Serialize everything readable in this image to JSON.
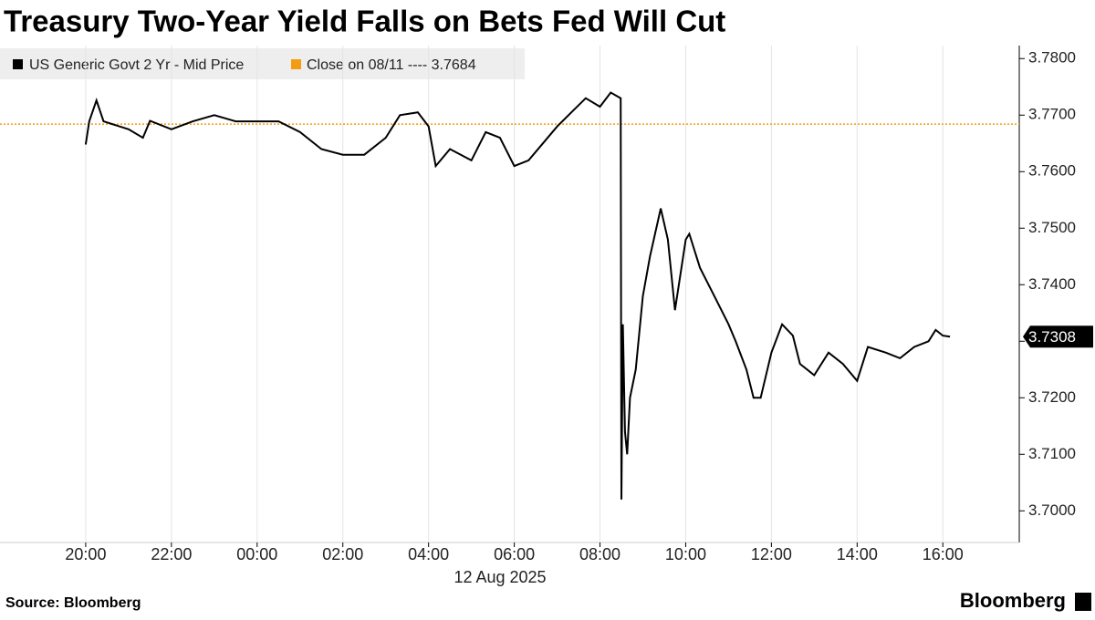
{
  "chart_data": {
    "type": "line",
    "title": "Treasury Two-Year Yield Falls on Bets Fed Will Cut",
    "source": "Source: Bloomberg",
    "brand": "Bloomberg",
    "x_sublabel": "12 Aug 2025",
    "xlim": [
      "18:00",
      "17:47"
    ],
    "xticks": [
      "20:00",
      "22:00",
      "00:00",
      "02:00",
      "04:00",
      "06:00",
      "08:00",
      "10:00",
      "12:00",
      "14:00",
      "16:00"
    ],
    "ylim": [
      3.6944,
      3.7823
    ],
    "yticks": [
      {
        "value": 3.7,
        "label": "3.7000"
      },
      {
        "value": 3.71,
        "label": "3.7100"
      },
      {
        "value": 3.72,
        "label": "3.7200"
      },
      {
        "value": 3.73,
        "label": "3.7300"
      },
      {
        "value": 3.74,
        "label": "3.7400"
      },
      {
        "value": 3.75,
        "label": "3.7500"
      },
      {
        "value": 3.76,
        "label": "3.7600"
      },
      {
        "value": 3.77,
        "label": "3.7700"
      },
      {
        "value": 3.78,
        "label": "3.7800"
      }
    ],
    "x": [
      "20:00",
      "20:05",
      "20:15",
      "20:25",
      "21:00",
      "21:20",
      "21:30",
      "22:00",
      "22:30",
      "23:00",
      "23:30",
      "00:30",
      "01:00",
      "01:30",
      "02:00",
      "02:30",
      "03:00",
      "03:20",
      "03:45",
      "04:00",
      "04:10",
      "04:30",
      "05:00",
      "05:20",
      "05:40",
      "06:00",
      "06:20",
      "06:40",
      "07:00",
      "07:20",
      "07:40",
      "08:00",
      "08:15",
      "08:29",
      "08:30",
      "08:32",
      "08:35",
      "08:38",
      "08:42",
      "08:50",
      "09:00",
      "09:10",
      "09:25",
      "09:35",
      "09:45",
      "10:00",
      "10:05",
      "10:20",
      "10:40",
      "11:00",
      "11:10",
      "11:25",
      "11:35",
      "11:45",
      "12:00",
      "12:15",
      "12:30",
      "12:40",
      "13:00",
      "13:20",
      "13:40",
      "14:00",
      "14:15",
      "14:40",
      "15:00",
      "15:20",
      "15:40",
      "15:50",
      "16:00",
      "16:10"
    ],
    "series": [
      {
        "name": "US Generic Govt 2 Yr - Mid Price",
        "color": "#000000",
        "values": [
          3.7648,
          3.7689,
          3.7726,
          3.7689,
          3.7675,
          3.766,
          3.769,
          3.7675,
          3.7689,
          3.77,
          3.7689,
          3.7689,
          3.767,
          3.764,
          3.763,
          3.763,
          3.766,
          3.77,
          3.7705,
          3.768,
          3.761,
          3.764,
          3.762,
          3.767,
          3.766,
          3.761,
          3.762,
          3.765,
          3.768,
          3.7705,
          3.773,
          3.7715,
          3.774,
          3.773,
          3.702,
          3.733,
          3.714,
          3.71,
          3.72,
          3.725,
          3.738,
          3.745,
          3.7535,
          3.748,
          3.7355,
          3.748,
          3.749,
          3.743,
          3.738,
          3.733,
          3.73,
          3.725,
          3.72,
          3.72,
          3.728,
          3.733,
          3.731,
          3.726,
          3.724,
          3.728,
          3.726,
          3.723,
          3.729,
          3.728,
          3.727,
          3.729,
          3.73,
          3.732,
          3.731,
          3.7308
        ]
      }
    ],
    "reference_line": {
      "name": "Close on 08/11 ---- 3.7684",
      "value": 3.7684,
      "color": "#f39c12"
    }
  }
}
